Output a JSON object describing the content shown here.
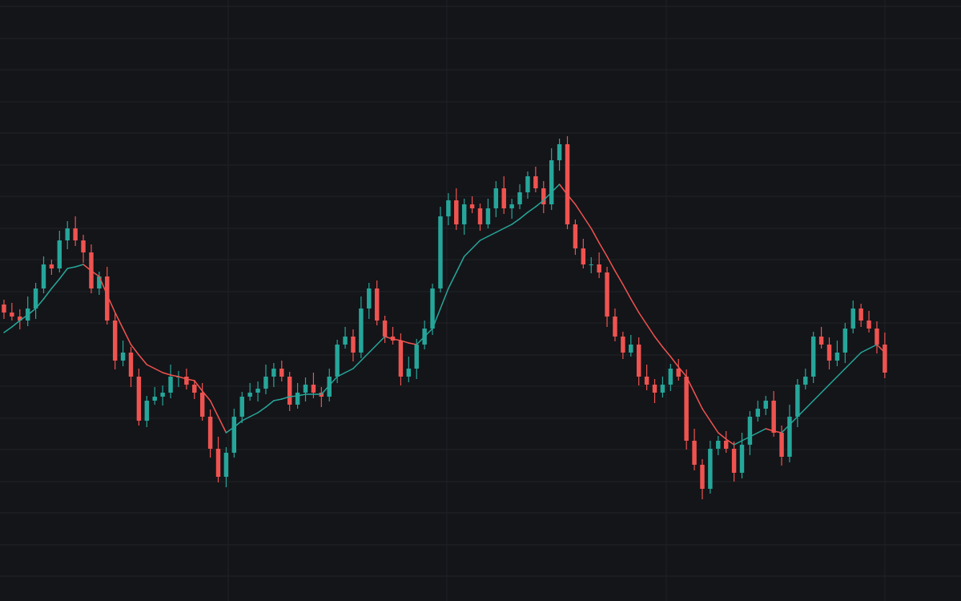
{
  "chart_data": {
    "type": "candlestick",
    "up_color": "#26a69a",
    "down_color": "#ef5350",
    "background": "#141519",
    "grid_color": "#1f2227",
    "grid": true,
    "xlim": [
      -0.5,
      120.6
    ],
    "ylim": [
      0,
      750
    ],
    "xticks": [
      28.26,
      55.8,
      83.46,
      111
    ],
    "yticks": [
      742,
      702,
      663,
      623,
      584,
      544,
      505,
      465,
      426,
      386,
      347,
      307,
      268,
      228,
      189,
      149,
      110,
      70,
      31
    ],
    "open": [
      370,
      360,
      355,
      350,
      365,
      390,
      420,
      415,
      450,
      465,
      450,
      435,
      390,
      405,
      350,
      300,
      310,
      280,
      225,
      250,
      255,
      260,
      280,
      280,
      270,
      260,
      230,
      190,
      155,
      185,
      230,
      255,
      260,
      265,
      280,
      290,
      280,
      245,
      260,
      270,
      260,
      255,
      280,
      320,
      330,
      310,
      365,
      390,
      350,
      330,
      325,
      280,
      290,
      320,
      340,
      390,
      480,
      500,
      470,
      495,
      490,
      470,
      490,
      515,
      490,
      495,
      510,
      530,
      515,
      495,
      550,
      570,
      470,
      440,
      420,
      420,
      410,
      355,
      330,
      310,
      320,
      280,
      270,
      260,
      270,
      290,
      280,
      200,
      170,
      140,
      190,
      200,
      190,
      160,
      195,
      230,
      240,
      250,
      210,
      180,
      230,
      270,
      280,
      330,
      320,
      300,
      310,
      340,
      365,
      350,
      340,
      320
    ],
    "high": [
      376,
      372,
      364,
      380,
      397,
      430,
      426,
      462,
      474,
      480,
      457,
      445,
      411,
      417,
      359,
      325,
      317,
      290,
      256,
      267,
      269,
      295,
      287,
      290,
      276,
      272,
      239,
      205,
      192,
      240,
      261,
      272,
      274,
      295,
      297,
      300,
      286,
      272,
      279,
      285,
      267,
      290,
      326,
      342,
      339,
      380,
      397,
      400,
      356,
      342,
      334,
      305,
      327,
      350,
      396,
      492,
      509,
      515,
      502,
      505,
      496,
      502,
      524,
      530,
      502,
      520,
      536,
      542,
      524,
      565,
      577,
      580,
      476,
      452,
      429,
      435,
      417,
      365,
      336,
      332,
      329,
      295,
      277,
      280,
      296,
      302,
      289,
      215,
      177,
      200,
      206,
      212,
      199,
      210,
      237,
      250,
      256,
      262,
      219,
      245,
      277,
      290,
      336,
      342,
      329,
      325,
      347,
      375,
      371,
      362,
      349,
      335
    ],
    "low": [
      352,
      350,
      339,
      343,
      352,
      384,
      407,
      410,
      439,
      443,
      422,
      384,
      382,
      345,
      289,
      293,
      267,
      219,
      217,
      245,
      244,
      253,
      267,
      264,
      252,
      225,
      179,
      148,
      142,
      179,
      222,
      250,
      249,
      258,
      267,
      274,
      237,
      240,
      249,
      253,
      242,
      249,
      272,
      315,
      299,
      303,
      352,
      344,
      322,
      320,
      269,
      273,
      277,
      314,
      332,
      385,
      469,
      463,
      457,
      484,
      462,
      465,
      479,
      483,
      477,
      489,
      502,
      510,
      484,
      488,
      537,
      464,
      432,
      415,
      409,
      403,
      342,
      324,
      302,
      305,
      269,
      263,
      247,
      254,
      262,
      275,
      189,
      163,
      127,
      134,
      182,
      185,
      149,
      153,
      182,
      224,
      232,
      205,
      169,
      173,
      217,
      264,
      272,
      315,
      289,
      293,
      297,
      334,
      342,
      335,
      309,
      278
    ],
    "close": [
      360,
      355,
      350,
      365,
      390,
      420,
      415,
      450,
      465,
      450,
      435,
      390,
      405,
      350,
      300,
      310,
      280,
      225,
      250,
      255,
      260,
      280,
      280,
      270,
      260,
      230,
      190,
      155,
      185,
      230,
      255,
      260,
      265,
      280,
      290,
      280,
      245,
      260,
      270,
      260,
      255,
      280,
      320,
      330,
      310,
      365,
      390,
      350,
      330,
      325,
      280,
      290,
      320,
      340,
      390,
      480,
      500,
      470,
      495,
      490,
      470,
      490,
      515,
      490,
      495,
      510,
      530,
      515,
      495,
      550,
      570,
      470,
      440,
      420,
      420,
      410,
      355,
      330,
      310,
      320,
      280,
      270,
      260,
      270,
      290,
      280,
      200,
      170,
      140,
      190,
      200,
      190,
      160,
      195,
      230,
      240,
      250,
      210,
      180,
      230,
      270,
      280,
      330,
      320,
      300,
      310,
      340,
      365,
      350,
      340,
      320,
      285
    ],
    "ma": {
      "values": [
        335,
        342,
        350,
        357,
        365,
        377,
        390,
        402,
        415,
        417,
        420,
        412,
        405,
        382,
        360,
        340,
        320,
        307,
        295,
        290,
        285,
        282,
        280,
        277,
        275,
        262,
        250,
        230,
        210,
        217,
        225,
        230,
        235,
        242,
        250,
        252,
        255,
        256,
        258,
        258,
        258,
        269,
        280,
        285,
        290,
        300,
        310,
        320,
        330,
        327,
        325,
        322,
        320,
        330,
        340,
        365,
        390,
        410,
        430,
        440,
        450,
        455,
        460,
        465,
        470,
        477,
        485,
        492,
        500,
        510,
        520,
        507,
        495,
        480,
        465,
        447,
        430,
        412,
        395,
        377,
        360,
        345,
        330,
        317,
        305,
        292,
        280,
        260,
        240,
        225,
        210,
        202,
        195,
        200,
        205,
        210,
        215,
        212,
        210,
        220,
        230,
        240,
        250,
        260,
        270,
        280,
        290,
        300,
        310,
        315,
        320,
        310
      ]
    }
  }
}
